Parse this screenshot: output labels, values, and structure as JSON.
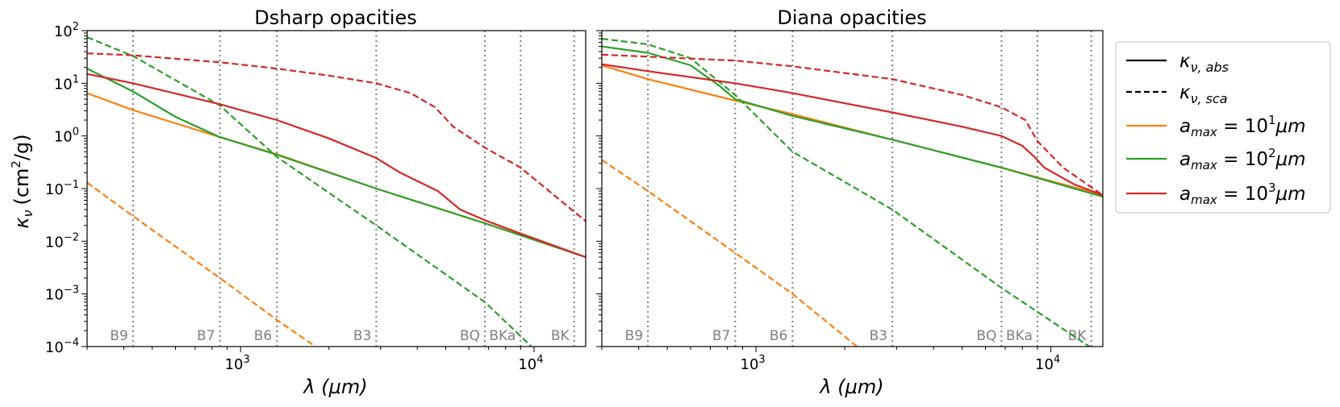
{
  "figure": {
    "ylabel_main": "κ",
    "ylabel_sub": "ν",
    "ylabel_unit_pre": "(cm",
    "ylabel_unit_sup": "2",
    "ylabel_unit_post": "/g)"
  },
  "legend": {
    "location": "outside-right",
    "entries": [
      {
        "key": "abs",
        "style": "solid",
        "color": "#000000",
        "main": "κ",
        "sub": "ν, abs"
      },
      {
        "key": "sca",
        "style": "dashed",
        "color": "#000000",
        "main": "κ",
        "sub": "ν, sca"
      },
      {
        "key": "a1",
        "style": "solid",
        "color": "#ff7f0e",
        "prefix": "a",
        "sub": "max",
        "mid": " = 10",
        "sup": "1",
        "post": "μm"
      },
      {
        "key": "a2",
        "style": "solid",
        "color": "#2ca02c",
        "prefix": "a",
        "sub": "max",
        "mid": " = 10",
        "sup": "2",
        "post": "μm"
      },
      {
        "key": "a3",
        "style": "solid",
        "color": "#d62728",
        "prefix": "a",
        "sub": "max",
        "mid": " = 10",
        "sup": "3",
        "post": "μm"
      }
    ]
  },
  "chart_data": [
    {
      "type": "line",
      "title": "Dsharp opacities",
      "xlabel": "λ (μm)",
      "xscale": "log",
      "yscale": "log",
      "xlim": [
        300,
        15000
      ],
      "ylim": [
        0.0001,
        100
      ],
      "xticks": [
        {
          "value": 1000,
          "base": "10",
          "exp": "3"
        },
        {
          "value": 10000,
          "base": "10",
          "exp": "4"
        }
      ],
      "yticks": [
        {
          "value": 0.0001,
          "base": "10",
          "exp": "−4"
        },
        {
          "value": 0.001,
          "base": "10",
          "exp": "−3"
        },
        {
          "value": 0.01,
          "base": "10",
          "exp": "−2"
        },
        {
          "value": 0.1,
          "base": "10",
          "exp": "−1"
        },
        {
          "value": 1,
          "base": "10",
          "exp": "0"
        },
        {
          "value": 10,
          "base": "10",
          "exp": "1"
        },
        {
          "value": 100,
          "base": "10",
          "exp": "2"
        }
      ],
      "bands": [
        {
          "name": "B9",
          "x": 430
        },
        {
          "name": "B7",
          "x": 850
        },
        {
          "name": "B6",
          "x": 1330
        },
        {
          "name": "B3",
          "x": 2900
        },
        {
          "name": "BQ",
          "x": 6800
        },
        {
          "name": "BKa",
          "x": 9000
        },
        {
          "name": "BK",
          "x": 13700
        }
      ],
      "series": [
        {
          "legend_key": "a1",
          "kind": "abs",
          "color": "#ff7f0e",
          "dash": false,
          "points": [
            [
              300,
              6.5
            ],
            [
              430,
              3.1
            ],
            [
              850,
              0.95
            ],
            [
              1330,
              0.45
            ],
            [
              2900,
              0.1
            ],
            [
              6800,
              0.022
            ],
            [
              15000,
              0.005
            ]
          ]
        },
        {
          "legend_key": "a1",
          "kind": "sca",
          "color": "#ff7f0e",
          "dash": true,
          "points": [
            [
              300,
              0.13
            ],
            [
              430,
              0.03
            ],
            [
              850,
              0.002
            ],
            [
              1330,
              0.00032
            ],
            [
              1800,
              0.0001
            ]
          ]
        },
        {
          "legend_key": "a2",
          "kind": "abs",
          "color": "#2ca02c",
          "dash": false,
          "points": [
            [
              300,
              19
            ],
            [
              430,
              7
            ],
            [
              600,
              2.3
            ],
            [
              850,
              0.95
            ],
            [
              1330,
              0.44
            ],
            [
              2900,
              0.1
            ],
            [
              6800,
              0.022
            ],
            [
              15000,
              0.005
            ]
          ]
        },
        {
          "legend_key": "a2",
          "kind": "sca",
          "color": "#2ca02c",
          "dash": true,
          "points": [
            [
              300,
              75
            ],
            [
              430,
              33
            ],
            [
              850,
              3.8
            ],
            [
              1330,
              0.4
            ],
            [
              2900,
              0.02
            ],
            [
              6800,
              0.0007
            ],
            [
              9800,
              0.0001
            ]
          ]
        },
        {
          "legend_key": "a3",
          "kind": "abs",
          "color": "#d62728",
          "dash": false,
          "points": [
            [
              300,
              15
            ],
            [
              430,
              10
            ],
            [
              850,
              4
            ],
            [
              1330,
              2.0
            ],
            [
              2000,
              0.9
            ],
            [
              2900,
              0.38
            ],
            [
              3500,
              0.2
            ],
            [
              4700,
              0.09
            ],
            [
              5600,
              0.04
            ],
            [
              6800,
              0.025
            ],
            [
              9000,
              0.014
            ],
            [
              15000,
              0.005
            ]
          ]
        },
        {
          "legend_key": "a3",
          "kind": "sca",
          "color": "#d62728",
          "dash": true,
          "points": [
            [
              300,
              37
            ],
            [
              430,
              34
            ],
            [
              850,
              25
            ],
            [
              1330,
              19
            ],
            [
              2000,
              14
            ],
            [
              2900,
              10
            ],
            [
              3800,
              6.5
            ],
            [
              4600,
              3.5
            ],
            [
              5300,
              1.5
            ],
            [
              6800,
              0.6
            ],
            [
              9000,
              0.25
            ],
            [
              15000,
              0.024
            ]
          ]
        }
      ]
    },
    {
      "type": "line",
      "title": "Diana opacities",
      "xlabel": "λ (μm)",
      "xscale": "log",
      "yscale": "log",
      "xlim": [
        300,
        15000
      ],
      "ylim": [
        0.0001,
        100
      ],
      "xticks": [
        {
          "value": 1000,
          "base": "10",
          "exp": "3"
        },
        {
          "value": 10000,
          "base": "10",
          "exp": "4"
        }
      ],
      "yticks": [],
      "bands": [
        {
          "name": "B9",
          "x": 430
        },
        {
          "name": "B7",
          "x": 850
        },
        {
          "name": "B6",
          "x": 1330
        },
        {
          "name": "B3",
          "x": 2900
        },
        {
          "name": "BQ",
          "x": 6800
        },
        {
          "name": "BKa",
          "x": 9000
        },
        {
          "name": "BK",
          "x": 13700
        }
      ],
      "series": [
        {
          "legend_key": "a1",
          "kind": "abs",
          "color": "#ff7f0e",
          "dash": false,
          "points": [
            [
              300,
              22
            ],
            [
              430,
              12
            ],
            [
              850,
              4.7
            ],
            [
              1330,
              2.6
            ],
            [
              2900,
              0.85
            ],
            [
              6800,
              0.25
            ],
            [
              15000,
              0.075
            ]
          ]
        },
        {
          "legend_key": "a1",
          "kind": "sca",
          "color": "#ff7f0e",
          "dash": true,
          "points": [
            [
              300,
              0.35
            ],
            [
              430,
              0.09
            ],
            [
              850,
              0.006
            ],
            [
              1330,
              0.001
            ],
            [
              2200,
              0.0001
            ]
          ]
        },
        {
          "legend_key": "a2",
          "kind": "abs",
          "color": "#2ca02c",
          "dash": false,
          "points": [
            [
              300,
              50
            ],
            [
              430,
              38
            ],
            [
              600,
              22
            ],
            [
              750,
              9
            ],
            [
              850,
              5
            ],
            [
              1330,
              2.4
            ],
            [
              2900,
              0.85
            ],
            [
              6800,
              0.25
            ],
            [
              15000,
              0.07
            ]
          ]
        },
        {
          "legend_key": "a2",
          "kind": "sca",
          "color": "#2ca02c",
          "dash": true,
          "points": [
            [
              300,
              70
            ],
            [
              430,
              55
            ],
            [
              600,
              30
            ],
            [
              850,
              6
            ],
            [
              1330,
              0.5
            ],
            [
              2900,
              0.04
            ],
            [
              6800,
              0.0013
            ],
            [
              13500,
              0.0001
            ]
          ]
        },
        {
          "legend_key": "a3",
          "kind": "abs",
          "color": "#d62728",
          "dash": false,
          "points": [
            [
              300,
              23
            ],
            [
              430,
              17
            ],
            [
              850,
              10
            ],
            [
              1330,
              6.5
            ],
            [
              2900,
              2.8
            ],
            [
              5000,
              1.5
            ],
            [
              6800,
              1.0
            ],
            [
              8000,
              0.65
            ],
            [
              8800,
              0.4
            ],
            [
              9500,
              0.25
            ],
            [
              12000,
              0.12
            ],
            [
              15000,
              0.075
            ]
          ]
        },
        {
          "legend_key": "a3",
          "kind": "sca",
          "color": "#d62728",
          "dash": true,
          "points": [
            [
              300,
              35
            ],
            [
              430,
              32
            ],
            [
              850,
              27
            ],
            [
              1330,
              21
            ],
            [
              2900,
              12
            ],
            [
              5000,
              6
            ],
            [
              6800,
              3.5
            ],
            [
              8200,
              2
            ],
            [
              9000,
              0.8
            ],
            [
              11000,
              0.25
            ],
            [
              15000,
              0.075
            ]
          ]
        }
      ]
    }
  ]
}
